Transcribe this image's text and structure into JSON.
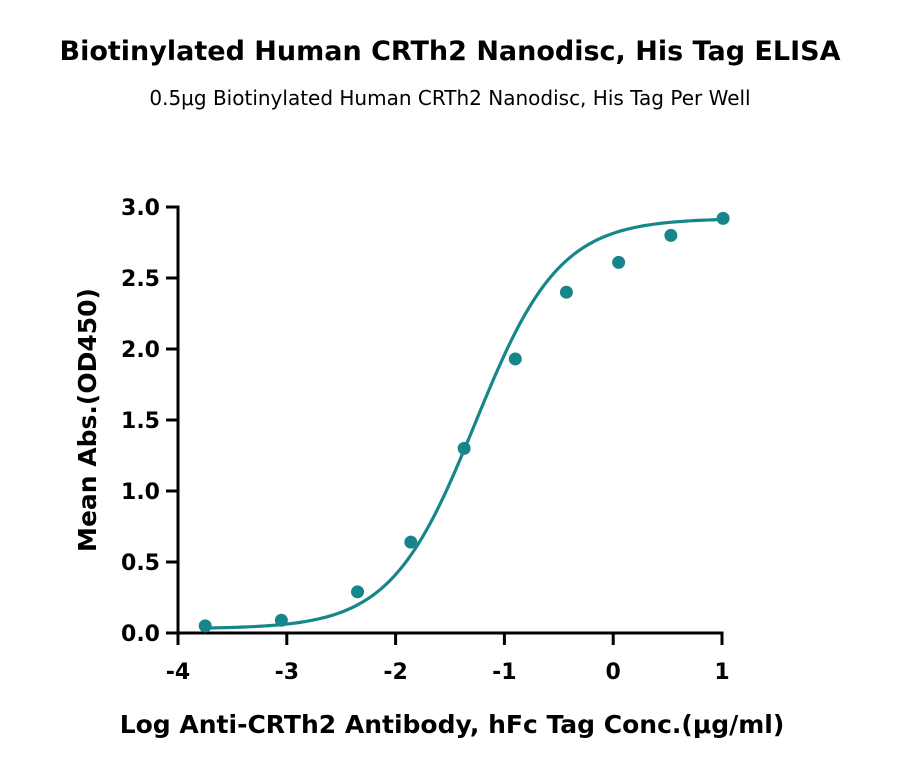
{
  "chart_data": {
    "type": "scatter",
    "title": "Biotinylated Human CRTh2 Nanodisc, His Tag ELISA",
    "subtitle": "0.5μg Biotinylated Human CRTh2 Nanodisc, His Tag Per Well",
    "xlabel": "Log Anti-CRTh2 Antibody, hFc Tag Conc.(μg/ml)",
    "ylabel": "Mean Abs.(OD450)",
    "xlim": [
      -4,
      1
    ],
    "ylim": [
      0,
      3
    ],
    "x_ticks": [
      "-4",
      "-3",
      "-2",
      "-1",
      "0",
      "1"
    ],
    "y_ticks": [
      "0.0",
      "0.5",
      "1.0",
      "1.5",
      "2.0",
      "2.5",
      "3.0"
    ],
    "grid": false,
    "legend": "none",
    "color": "#17868A",
    "series": [
      {
        "points": [
          {
            "x": -3.75,
            "y": 0.05
          },
          {
            "x": -3.05,
            "y": 0.09
          },
          {
            "x": -2.35,
            "y": 0.29
          },
          {
            "x": -1.86,
            "y": 0.64
          },
          {
            "x": -1.37,
            "y": 1.3
          },
          {
            "x": -0.9,
            "y": 1.93
          },
          {
            "x": -0.43,
            "y": 2.4
          },
          {
            "x": 0.05,
            "y": 2.61
          },
          {
            "x": 0.53,
            "y": 2.8
          },
          {
            "x": 1.01,
            "y": 2.92
          }
        ],
        "fit": {
          "type": "4PL",
          "bottom": 0.03,
          "top": 2.92,
          "log_ec50": -1.27,
          "hill_slope": 1.12,
          "x_range": [
            -3.75,
            1.0
          ]
        }
      }
    ]
  }
}
